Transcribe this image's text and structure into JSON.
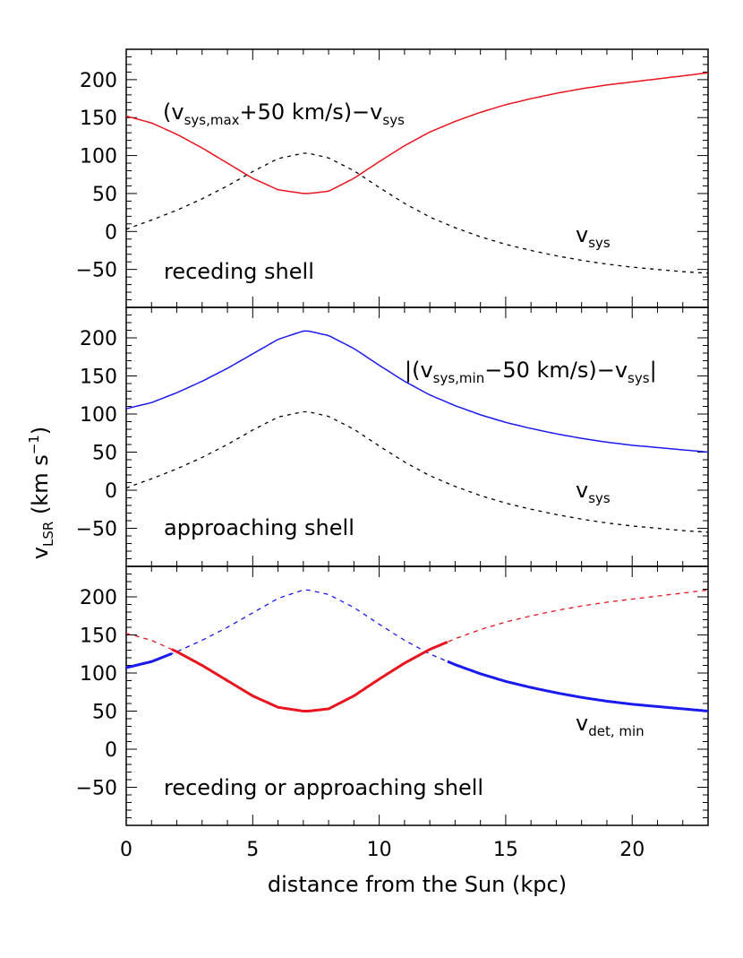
{
  "chart_data": {
    "type": "line",
    "xlabel": "distance from the Sun (kpc)",
    "ylabel": {
      "main": "v",
      "sub": "LSR",
      "unit_pre": " (km s",
      "unit_sup": "−1",
      "unit_post": ")"
    },
    "xlim": [
      0,
      23
    ],
    "ylim": [
      -100,
      240
    ],
    "xticks": [
      0,
      5,
      10,
      15,
      20
    ],
    "yticks": [
      -50,
      0,
      50,
      100,
      150,
      200
    ],
    "colors": {
      "red": "#e8141e",
      "blue": "#1a1aee",
      "black": "#000000"
    },
    "x": [
      0,
      1,
      2,
      3,
      4,
      5,
      6,
      7,
      7.2,
      8,
      9,
      10,
      11,
      12,
      13,
      14,
      15,
      16,
      17,
      18,
      19,
      20,
      21,
      22,
      23
    ],
    "vsys": [
      3,
      15,
      28,
      43,
      60,
      79,
      96,
      103,
      103,
      97,
      80,
      58,
      37,
      19,
      5,
      -7,
      -17,
      -25,
      -32,
      -38,
      -43,
      -47,
      -50,
      -53,
      -55
    ],
    "panels": [
      {
        "name": "receding",
        "label": "receding shell",
        "curve_label": {
          "pre": "(v",
          "sub": "sys,max",
          "post": "+50 km/s)−v",
          "sub2": "sys"
        },
        "vsys_label": {
          "main": "v",
          "sub": "sys"
        },
        "series": [
          {
            "values": [
              152,
              143,
              128,
              110,
              90,
              70,
              55,
              50,
              50,
              53,
              70,
              92,
              113,
              131,
              145,
              157,
              167,
              175,
              182,
              188,
              193,
              197,
              201,
              205,
              209
            ]
          }
        ]
      },
      {
        "name": "approaching",
        "label": "approaching shell",
        "curve_label": {
          "pre": "|(v",
          "sub": "sys,min",
          "post": "−50 km/s)−v",
          "sub2": "sys",
          "close": "|"
        },
        "vsys_label": {
          "main": "v",
          "sub": "sys"
        },
        "series": [
          {
            "values": [
              107,
              115,
              128,
              143,
              160,
              179,
              198,
              209,
              209,
              203,
              186,
              164,
              143,
              125,
              111,
              99,
              89,
              81,
              74,
              68,
              63,
              59,
              56,
              53,
              50
            ]
          }
        ]
      },
      {
        "name": "combined",
        "label": "receding or approaching shell",
        "curve_label": {
          "main": "v",
          "sub": "det, min"
        },
        "crossings": [
          1.8,
          12.7
        ]
      }
    ]
  }
}
